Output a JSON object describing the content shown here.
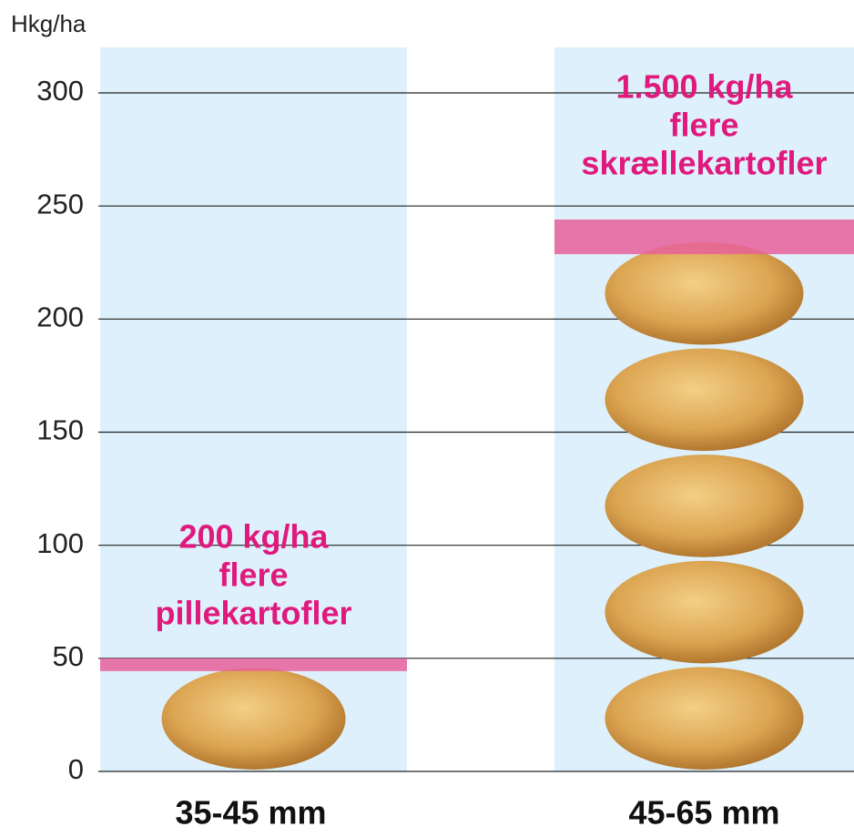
{
  "chart_data": {
    "type": "bar",
    "y_label": "Hkg/ha",
    "categories": [
      "35-45 mm",
      "45-65 mm"
    ],
    "values": [
      50,
      244
    ],
    "annotations": [
      [
        "200 kg/ha",
        "flere",
        "pillekartofler"
      ],
      [
        "1.500 kg/ha",
        "flere",
        "skrællekartofler"
      ]
    ],
    "color": "#d9a04a",
    "highlight_color": "#e8609a",
    "background_color": "#ddf0fb",
    "ylim": [
      0,
      300
    ],
    "yticks": [
      0,
      50,
      100,
      150,
      200,
      250,
      300
    ],
    "grid": true
  }
}
